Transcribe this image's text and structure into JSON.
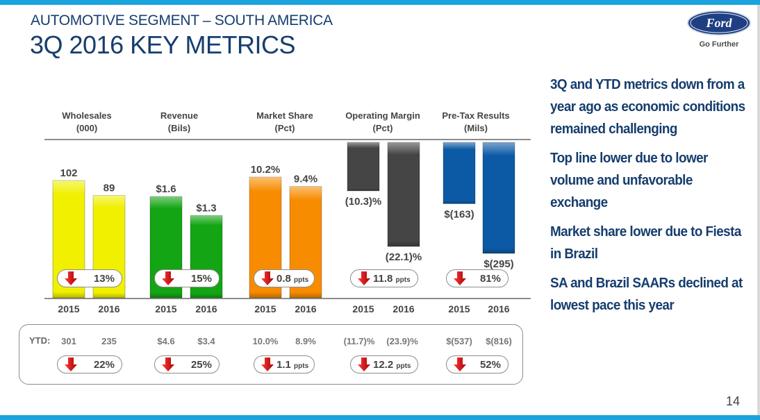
{
  "header": {
    "subtitle": "AUTOMOTIVE SEGMENT – SOUTH AMERICA",
    "title": "3Q 2016 KEY METRICS",
    "brand": "Ford",
    "tagline": "Go Further"
  },
  "colors": {
    "accent_bar": "#1aa3dd",
    "title": "#163d6e",
    "arrow_down": "#d0021b"
  },
  "chart_data": {
    "type": "bar",
    "title": "3Q 2016 Key Metrics – Automotive Segment South America",
    "categories": [
      "2015",
      "2016"
    ],
    "panels": [
      {
        "name": "Wholesales",
        "unit": "(000)",
        "values": [
          102,
          89
        ],
        "labels": [
          "102",
          "89"
        ],
        "color": "#f0f000",
        "change": "13%",
        "change_unit": "",
        "ytd": {
          "values": [
            "301",
            "235"
          ],
          "change": "22%",
          "change_unit": ""
        }
      },
      {
        "name": "Revenue",
        "unit": "(Bils)",
        "values": [
          1.6,
          1.3
        ],
        "labels": [
          "$1.6",
          "$1.3"
        ],
        "color": "#13a513",
        "change": "15%",
        "change_unit": "",
        "ytd": {
          "values": [
            "$4.6",
            "$3.4"
          ],
          "change": "25%",
          "change_unit": ""
        }
      },
      {
        "name": "Market Share",
        "unit": "(Pct)",
        "values": [
          10.2,
          9.4
        ],
        "labels": [
          "10.2%",
          "9.4%"
        ],
        "color": "#f88c00",
        "change": "0.8",
        "change_unit": "ppts",
        "ytd": {
          "values": [
            "10.0%",
            "8.9%"
          ],
          "change": "1.1",
          "change_unit": "ppts"
        }
      },
      {
        "name": "Operating Margin",
        "unit": "(Pct)",
        "values": [
          -10.3,
          -22.1
        ],
        "labels": [
          "(10.3)%",
          "(22.1)%"
        ],
        "color": "#454545",
        "change": "11.8",
        "change_unit": "ppts",
        "ytd": {
          "values": [
            "(11.7)%",
            "(23.9)%"
          ],
          "change": "12.2",
          "change_unit": "ppts"
        }
      },
      {
        "name": "Pre-Tax Results",
        "unit": "(Mils)",
        "values": [
          -163,
          -295
        ],
        "labels": [
          "$(163)",
          "$(295)"
        ],
        "color": "#0c5aa6",
        "change": "81%",
        "change_unit": "",
        "ytd": {
          "values": [
            "$(537)",
            "$(816)"
          ],
          "change": "52%",
          "change_unit": ""
        }
      }
    ],
    "ytd_label": "YTD:",
    "change_direction": "down"
  },
  "bullets": [
    "3Q and YTD metrics down from a year ago as economic conditions remained challenging",
    "Top line lower due to lower volume and unfavorable exchange",
    "Market share lower due to Fiesta in Brazil",
    "SA and Brazil SAARs declined at lowest pace this year"
  ],
  "page_number": "14"
}
